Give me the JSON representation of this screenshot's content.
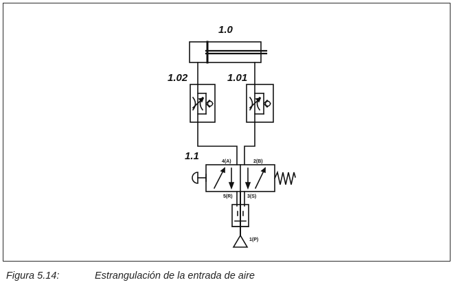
{
  "diagram": {
    "labels": {
      "cylinder": "1.0",
      "valve_left": "1.02",
      "valve_right": "1.01",
      "directional_valve": "1.1",
      "port_4": "4(A)",
      "port_2": "2(B)",
      "port_5": "5(R)",
      "port_3": "3(S)",
      "port_1": "1(P)"
    }
  },
  "caption": {
    "figure_number": "Figura 5.14:",
    "text": "Estrangulación de la entrada de aire"
  }
}
